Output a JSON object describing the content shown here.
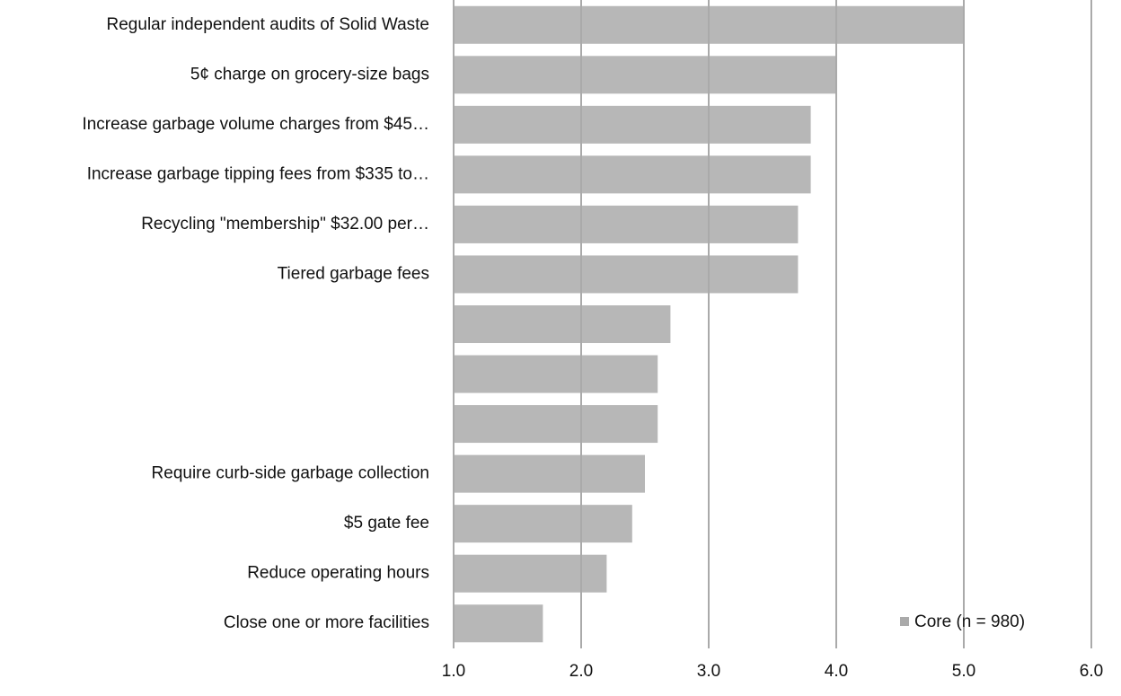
{
  "chart_data": {
    "type": "bar",
    "orientation": "horizontal",
    "categories": [
      "Regular independent audits of Solid Waste",
      "5¢ charge on grocery-size bags",
      "Increase garbage volume charges from $45…",
      "Increase garbage tipping fees from $335 to…",
      "Recycling \"membership\" $32.00 per…",
      "Tiered garbage fees",
      null,
      null,
      null,
      "Require curb-side garbage collection",
      "$5 gate fee",
      "Reduce operating hours",
      "Close one or more facilities"
    ],
    "series": [
      {
        "name": "Core (n = 980)",
        "color": "#aaaaaa",
        "values": [
          5.0,
          4.0,
          3.8,
          3.8,
          3.7,
          3.7,
          2.7,
          2.6,
          2.6,
          2.5,
          2.4,
          2.2,
          1.7
        ]
      }
    ],
    "xlim": [
      1,
      6
    ],
    "xticks": [
      {
        "value": 1,
        "label": "1.0"
      },
      {
        "value": 2,
        "label": "2.0"
      },
      {
        "value": 3,
        "label": "3.0"
      },
      {
        "value": 4,
        "label": "4.0"
      },
      {
        "value": 5,
        "label": "5.0"
      },
      {
        "value": 6,
        "label": "6.0"
      }
    ],
    "grid": true,
    "legend": "lower right"
  }
}
